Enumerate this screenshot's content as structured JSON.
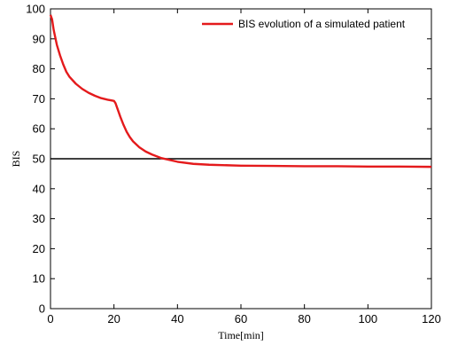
{
  "chart_data": {
    "type": "line",
    "title": "",
    "xlabel": "Time[min]",
    "ylabel": "BIS",
    "xlim": [
      0,
      120
    ],
    "ylim": [
      0,
      100
    ],
    "xticks": [
      0,
      20,
      40,
      60,
      80,
      100,
      120
    ],
    "yticks": [
      0,
      10,
      20,
      30,
      40,
      50,
      60,
      70,
      80,
      90,
      100
    ],
    "grid": false,
    "legend_position": "top-right",
    "series": [
      {
        "name": "BIS evolution of a simulated patient",
        "color": "#e41a1c",
        "x": [
          0,
          0.5,
          1,
          2,
          3,
          4,
          5,
          6,
          8,
          10,
          12,
          14,
          16,
          18,
          20,
          20.5,
          21,
          22,
          23,
          24,
          25,
          26,
          28,
          30,
          32,
          35,
          40,
          45,
          50,
          60,
          70,
          80,
          90,
          100,
          110,
          120
        ],
        "y": [
          98,
          96.5,
          93,
          88,
          84.5,
          81.5,
          79,
          77.3,
          75,
          73.3,
          72,
          71,
          70.2,
          69.7,
          69.3,
          68.5,
          67,
          64,
          61.3,
          59,
          57.2,
          55.8,
          53.8,
          52.4,
          51.4,
          50.2,
          49,
          48.3,
          48,
          47.7,
          47.6,
          47.5,
          47.5,
          47.4,
          47.4,
          47.3
        ]
      }
    ],
    "reference_line": {
      "y": 50,
      "color": "#000000"
    }
  }
}
